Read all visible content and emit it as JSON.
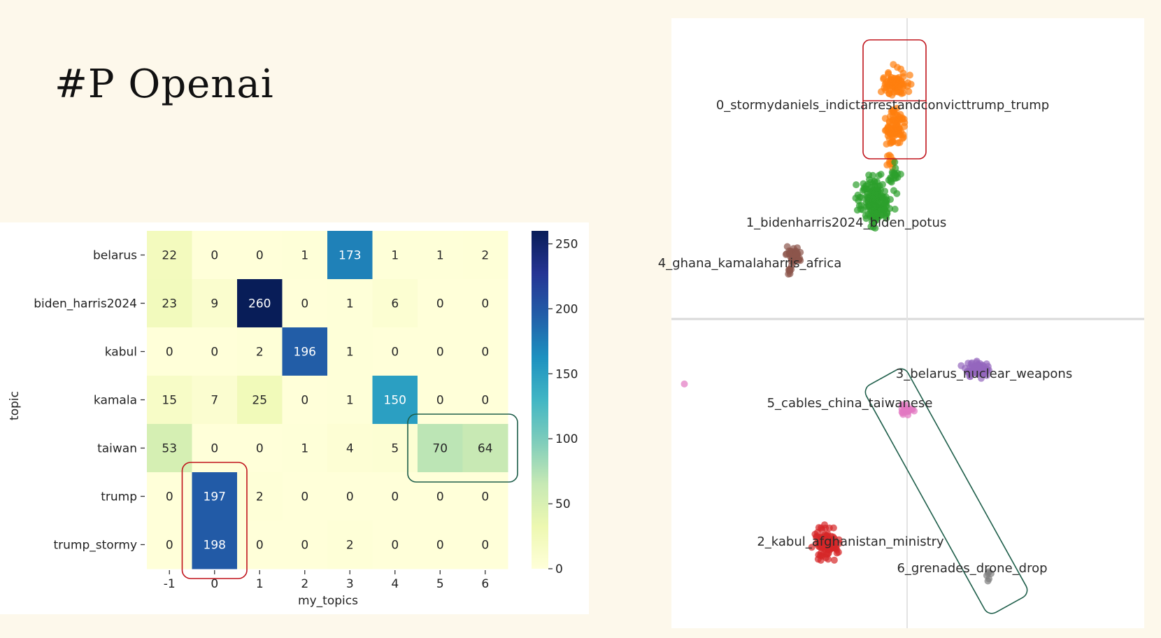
{
  "slide": {
    "title": "#P Openai"
  },
  "chart_data": [
    {
      "type": "heatmap",
      "ylabel": "topic",
      "xlabel": "my_topics",
      "rows": [
        "belarus",
        "biden_harris2024",
        "kabul",
        "kamala",
        "taiwan",
        "trump",
        "trump_stormy"
      ],
      "columns": [
        "-1",
        "0",
        "1",
        "2",
        "3",
        "4",
        "5",
        "6"
      ],
      "values": [
        [
          22,
          0,
          0,
          1,
          173,
          1,
          1,
          2
        ],
        [
          23,
          9,
          260,
          0,
          1,
          6,
          0,
          0
        ],
        [
          0,
          0,
          2,
          196,
          1,
          0,
          0,
          0
        ],
        [
          15,
          7,
          25,
          0,
          1,
          150,
          0,
          0
        ],
        [
          53,
          0,
          0,
          1,
          4,
          5,
          70,
          64
        ],
        [
          0,
          197,
          2,
          0,
          0,
          0,
          0,
          0
        ],
        [
          0,
          198,
          0,
          0,
          2,
          0,
          0,
          0
        ]
      ],
      "colorbar": {
        "ticks": [
          0,
          50,
          100,
          150,
          200,
          250
        ],
        "range": [
          0,
          260
        ],
        "colormap": "YlGnBu"
      },
      "highlights": [
        {
          "kind": "column",
          "column": "0",
          "rows": [
            "trump",
            "trump_stormy"
          ],
          "color": "#c0141c"
        },
        {
          "kind": "row",
          "row": "taiwan",
          "columns": [
            "5",
            "6"
          ],
          "color": "#1e5e4a"
        }
      ]
    },
    {
      "type": "scatter",
      "grid": "center crosshair lines",
      "clusters": [
        {
          "label": "0_stormydaniels_indictarrestandconvicttrump_trump",
          "color": "#ff7f0e"
        },
        {
          "label": "1_bidenharris2024_biden_potus",
          "color": "#2ca02c"
        },
        {
          "label": "2_kabul_afghanistan_ministry",
          "color": "#d62728"
        },
        {
          "label": "3_belarus_nuclear_weapons",
          "color": "#9467bd"
        },
        {
          "label": "4_ghana_kamalaharris_africa",
          "color": "#8c564b"
        },
        {
          "label": "5_cables_china_taiwanese",
          "color": "#e377c2"
        },
        {
          "label": "6_grenades_drone_drop",
          "color": "#7f7f7f"
        }
      ],
      "highlights": [
        {
          "kind": "box",
          "cluster": "0_stormydaniels_indictarrestandconvicttrump_trump",
          "color": "#c0141c"
        },
        {
          "kind": "box",
          "clusters": [
            "5_cables_china_taiwanese",
            "6_grenades_drone_drop"
          ],
          "color": "#1e5e4a"
        }
      ]
    }
  ]
}
